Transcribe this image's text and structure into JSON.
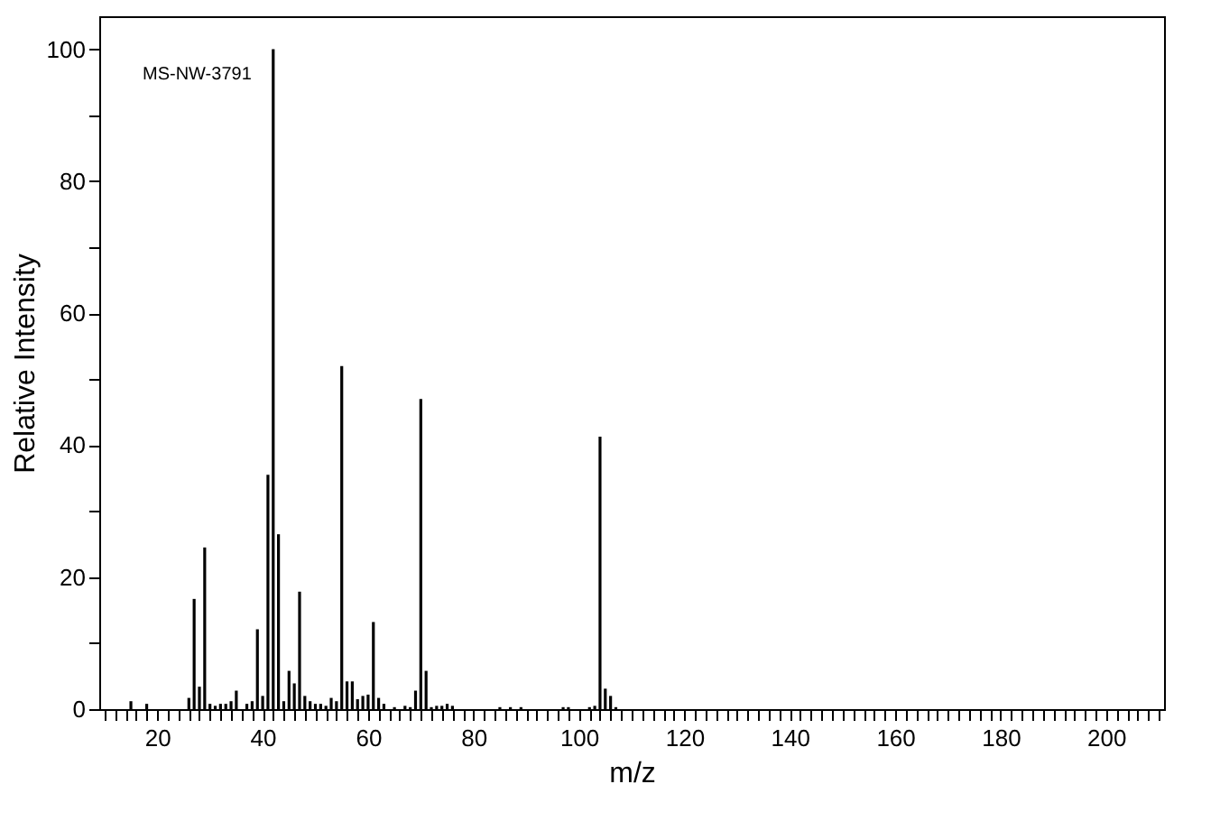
{
  "chart_data": {
    "type": "bar",
    "xlabel": "m/z",
    "ylabel": "Relative Intensity",
    "annotations": [
      "MS-NW-3791"
    ],
    "x": [
      15,
      18,
      26,
      27,
      28,
      29,
      30,
      31,
      32,
      33,
      34,
      35,
      37,
      38,
      39,
      40,
      41,
      42,
      43,
      44,
      45,
      46,
      47,
      48,
      49,
      50,
      51,
      52,
      53,
      54,
      55,
      56,
      57,
      58,
      59,
      60,
      61,
      62,
      63,
      65,
      67,
      68,
      69,
      70,
      71,
      72,
      73,
      74,
      75,
      76,
      85,
      87,
      89,
      97,
      98,
      102,
      103,
      104,
      105,
      106,
      107
    ],
    "series": [
      {
        "color": "#000000",
        "values": [
          1.2,
          0.8,
          1.7,
          16.7,
          3.4,
          24.5,
          0.8,
          0.5,
          0.8,
          0.8,
          1.2,
          2.8,
          0.8,
          1.2,
          12.1,
          2,
          35.5,
          100,
          26.5,
          1.2,
          5.8,
          3.9,
          17.8,
          2,
          1.2,
          0.8,
          0.8,
          0.5,
          1.7,
          1.2,
          52,
          4.2,
          4.2,
          1.5,
          2,
          2.2,
          13.2,
          1.7,
          0.8,
          0.3,
          0.5,
          0.3,
          2.8,
          47,
          5.8,
          0.3,
          0.5,
          0.5,
          0.8,
          0.5,
          0.3,
          0.3,
          0.3,
          0.3,
          0.3,
          0.3,
          0.5,
          41.3,
          3.1,
          2,
          0.3
        ]
      }
    ],
    "xlim": [
      9,
      211
    ],
    "ylim": [
      0,
      105
    ],
    "xticks": [
      {
        "value": 10,
        "label": null
      },
      {
        "value": 12,
        "label": null
      },
      {
        "value": 14,
        "label": null
      },
      {
        "value": 16,
        "label": null
      },
      {
        "value": 18,
        "label": null
      },
      20,
      {
        "value": 22,
        "label": null
      },
      {
        "value": 24,
        "label": null
      },
      {
        "value": 26,
        "label": null
      },
      {
        "value": 28,
        "label": null
      },
      {
        "value": 30,
        "label": null
      },
      {
        "value": 32,
        "label": null
      },
      {
        "value": 34,
        "label": null
      },
      {
        "value": 36,
        "label": null
      },
      {
        "value": 38,
        "label": null
      },
      40,
      {
        "value": 42,
        "label": null
      },
      {
        "value": 44,
        "label": null
      },
      {
        "value": 46,
        "label": null
      },
      {
        "value": 48,
        "label": null
      },
      {
        "value": 50,
        "label": null
      },
      {
        "value": 52,
        "label": null
      },
      {
        "value": 54,
        "label": null
      },
      {
        "value": 56,
        "label": null
      },
      {
        "value": 58,
        "label": null
      },
      60,
      {
        "value": 62,
        "label": null
      },
      {
        "value": 64,
        "label": null
      },
      {
        "value": 66,
        "label": null
      },
      {
        "value": 68,
        "label": null
      },
      {
        "value": 70,
        "label": null
      },
      {
        "value": 72,
        "label": null
      },
      {
        "value": 74,
        "label": null
      },
      {
        "value": 76,
        "label": null
      },
      {
        "value": 78,
        "label": null
      },
      80,
      {
        "value": 82,
        "label": null
      },
      {
        "value": 84,
        "label": null
      },
      {
        "value": 86,
        "label": null
      },
      {
        "value": 88,
        "label": null
      },
      {
        "value": 90,
        "label": null
      },
      {
        "value": 92,
        "label": null
      },
      {
        "value": 94,
        "label": null
      },
      {
        "value": 96,
        "label": null
      },
      {
        "value": 98,
        "label": null
      },
      100,
      {
        "value": 102,
        "label": null
      },
      {
        "value": 104,
        "label": null
      },
      {
        "value": 106,
        "label": null
      },
      {
        "value": 108,
        "label": null
      },
      {
        "value": 110,
        "label": null
      },
      {
        "value": 112,
        "label": null
      },
      {
        "value": 114,
        "label": null
      },
      {
        "value": 116,
        "label": null
      },
      {
        "value": 118,
        "label": null
      },
      120,
      {
        "value": 122,
        "label": null
      },
      {
        "value": 124,
        "label": null
      },
      {
        "value": 126,
        "label": null
      },
      {
        "value": 128,
        "label": null
      },
      {
        "value": 130,
        "label": null
      },
      {
        "value": 132,
        "label": null
      },
      {
        "value": 134,
        "label": null
      },
      {
        "value": 136,
        "label": null
      },
      {
        "value": 138,
        "label": null
      },
      140,
      {
        "value": 142,
        "label": null
      },
      {
        "value": 144,
        "label": null
      },
      {
        "value": 146,
        "label": null
      },
      {
        "value": 148,
        "label": null
      },
      {
        "value": 150,
        "label": null
      },
      {
        "value": 152,
        "label": null
      },
      {
        "value": 154,
        "label": null
      },
      {
        "value": 156,
        "label": null
      },
      {
        "value": 158,
        "label": null
      },
      160,
      {
        "value": 162,
        "label": null
      },
      {
        "value": 164,
        "label": null
      },
      {
        "value": 166,
        "label": null
      },
      {
        "value": 168,
        "label": null
      },
      {
        "value": 170,
        "label": null
      },
      {
        "value": 172,
        "label": null
      },
      {
        "value": 174,
        "label": null
      },
      {
        "value": 176,
        "label": null
      },
      {
        "value": 178,
        "label": null
      },
      180,
      {
        "value": 182,
        "label": null
      },
      {
        "value": 184,
        "label": null
      },
      {
        "value": 186,
        "label": null
      },
      {
        "value": 188,
        "label": null
      },
      {
        "value": 190,
        "label": null
      },
      {
        "value": 192,
        "label": null
      },
      {
        "value": 194,
        "label": null
      },
      {
        "value": 196,
        "label": null
      },
      {
        "value": 198,
        "label": null
      },
      200,
      {
        "value": 202,
        "label": null
      },
      {
        "value": 204,
        "label": null
      },
      {
        "value": 206,
        "label": null
      },
      {
        "value": 208,
        "label": null
      },
      {
        "value": 210,
        "label": null
      }
    ],
    "yticks": [
      0,
      {
        "value": 10,
        "label": null
      },
      20,
      {
        "value": 30,
        "label": null
      },
      40,
      {
        "value": 50,
        "label": null
      },
      60,
      {
        "value": 70,
        "label": null
      },
      80,
      {
        "value": 90,
        "label": null
      },
      100
    ],
    "grid": false
  }
}
